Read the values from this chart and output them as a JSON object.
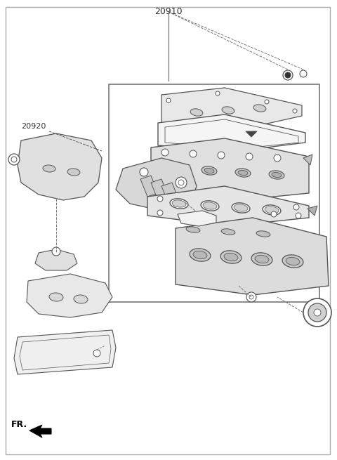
{
  "title": "20910",
  "label_20920": "20920",
  "label_FR": "FR.",
  "bg_color": "#ffffff",
  "line_color": "#555555",
  "border_color": "#888888",
  "text_color": "#333333",
  "figure_width": 4.8,
  "figure_height": 6.55,
  "dpi": 100
}
